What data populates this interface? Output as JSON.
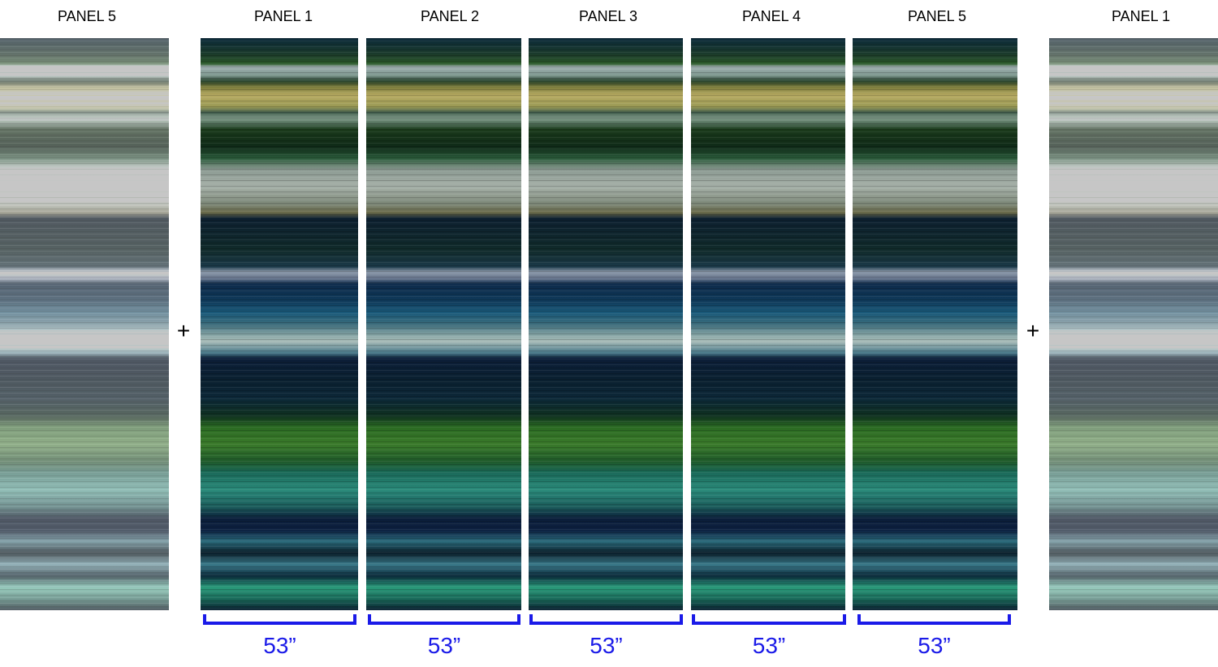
{
  "panels": [
    {
      "label": "PANEL 5"
    },
    {
      "label": "PANEL 1"
    },
    {
      "label": "PANEL 2"
    },
    {
      "label": "PANEL 3"
    },
    {
      "label": "PANEL 4"
    },
    {
      "label": "PANEL 5"
    },
    {
      "label": "PANEL 1"
    }
  ],
  "joins": [
    "+",
    "+"
  ],
  "widths": [
    "53”",
    "53”",
    "53”",
    "53”",
    "53”"
  ]
}
